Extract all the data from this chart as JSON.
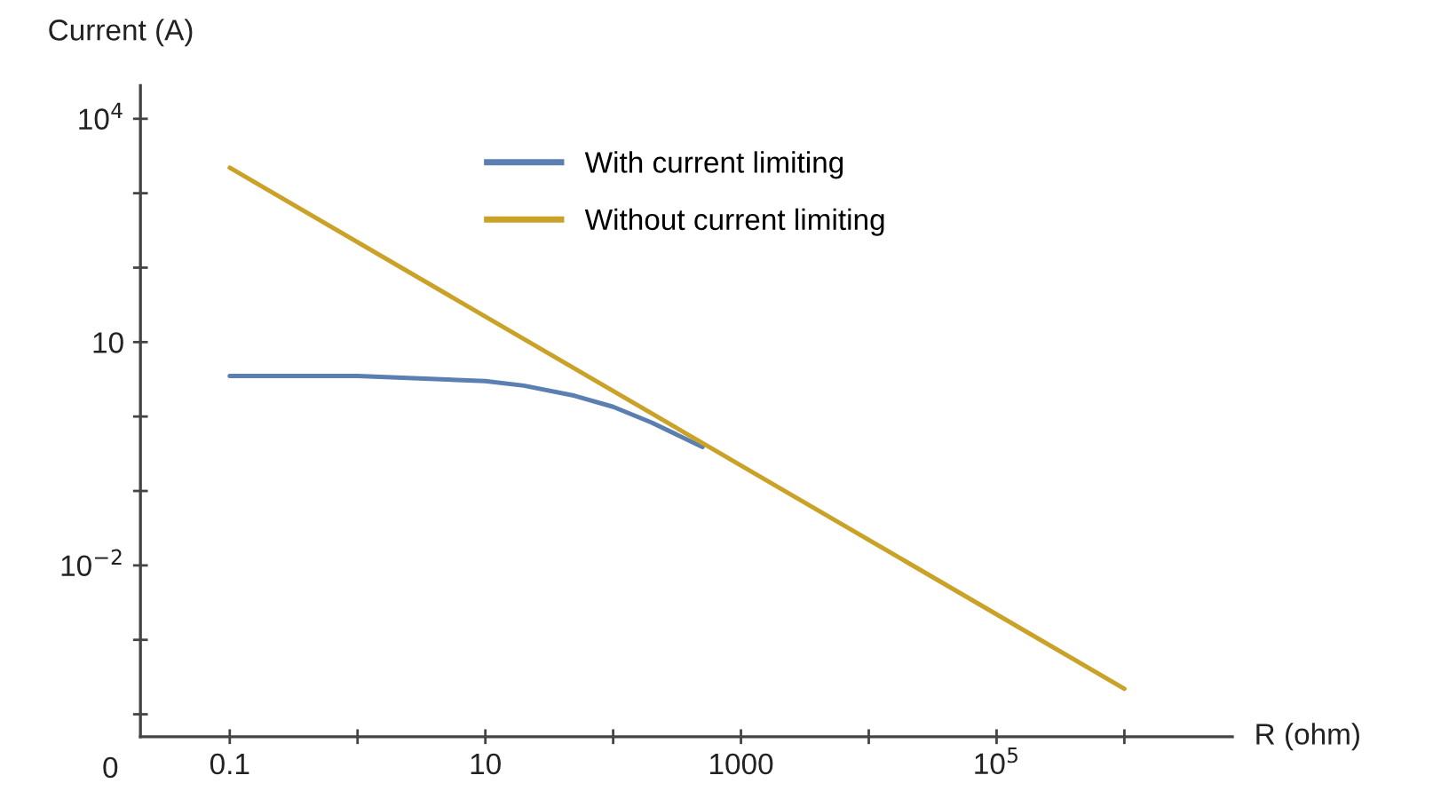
{
  "chart_data": {
    "type": "line",
    "xlabel": "R (ohm)",
    "ylabel": "Current (A)",
    "log": "xy",
    "grid": false,
    "legend": "top",
    "marker": "none",
    "line_style": "solid",
    "annotations": [
      "0"
    ],
    "series": [
      {
        "name": "With current limiting",
        "color": "#5b7fb0",
        "x": [
          0.1,
          1,
          10,
          20,
          50,
          100,
          200,
          500
        ],
        "values": [
          3.5,
          3.5,
          3.0,
          2.6,
          1.9,
          1.35,
          0.83,
          0.39
        ]
      },
      {
        "name": "Without current limiting",
        "color": "#c9a227",
        "x": [
          0.1,
          10,
          1000,
          100000,
          1000000
        ],
        "values": [
          2200,
          22,
          0.22,
          0.0022,
          0.00022
        ]
      }
    ],
    "xlim": [
      0.02,
      7000000
    ],
    "ylim": [
      5e-05,
      28000
    ],
    "xticks": [
      0.1,
      {
        "value": 1,
        "label": null
      },
      10,
      {
        "value": 100,
        "label": null
      },
      1000,
      {
        "value": 10000,
        "label": null
      },
      {
        "value": 100000,
        "label": "10$^{5}$"
      },
      {
        "value": 1000000,
        "label": null
      }
    ],
    "yticks": [
      {
        "value": 0.0001,
        "label": null
      },
      {
        "value": 0.001,
        "label": null
      },
      {
        "value": 0.01,
        "label": "10$^{−2}$"
      },
      {
        "value": 0.1,
        "label": null
      },
      {
        "value": 1,
        "label": null
      },
      10,
      {
        "value": 100,
        "label": null
      },
      {
        "value": 1000,
        "label": null
      },
      {
        "value": 10000,
        "label": "10$^{4}$"
      }
    ]
  }
}
